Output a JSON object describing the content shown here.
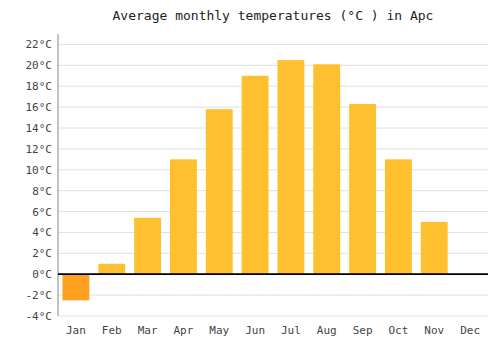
{
  "chart_data": {
    "type": "bar",
    "title": "Average monthly temperatures (°C ) in Apc",
    "categories": [
      "Jan",
      "Feb",
      "Mar",
      "Apr",
      "May",
      "Jun",
      "Jul",
      "Aug",
      "Sep",
      "Oct",
      "Nov",
      "Dec"
    ],
    "values": [
      -2.5,
      1.0,
      5.4,
      11.0,
      15.8,
      19.0,
      20.5,
      20.1,
      16.3,
      11.0,
      5.0,
      0.0
    ],
    "colors": [
      "#FFA020",
      "#FFC030",
      "#FFC030",
      "#FFC030",
      "#FFC030",
      "#FFC030",
      "#FFC030",
      "#FFC030",
      "#FFC030",
      "#FFC030",
      "#FFC030",
      "#FFC030"
    ],
    "ylim": [
      -4,
      23
    ],
    "yticks": [
      {
        "value": -4,
        "label": "-4°C"
      },
      {
        "value": -2,
        "label": "-2°C"
      },
      {
        "value": 0,
        "label": "0°C"
      },
      {
        "value": 2,
        "label": "2°C"
      },
      {
        "value": 4,
        "label": "4°C"
      },
      {
        "value": 6,
        "label": "6°C"
      },
      {
        "value": 8,
        "label": "8°C"
      },
      {
        "value": 10,
        "label": "10°C"
      },
      {
        "value": 12,
        "label": "12°C"
      },
      {
        "value": 14,
        "label": "14°C"
      },
      {
        "value": 16,
        "label": "16°C"
      },
      {
        "value": 18,
        "label": "18°C"
      },
      {
        "value": 20,
        "label": "20°C"
      },
      {
        "value": 22,
        "label": "22°C"
      }
    ],
    "grid": true
  }
}
